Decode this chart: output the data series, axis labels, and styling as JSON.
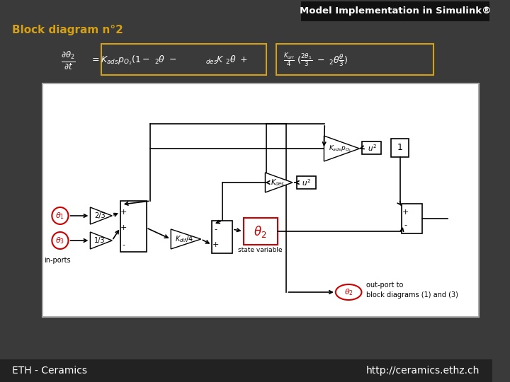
{
  "title": "Model Implementation in Simulink®",
  "subtitle": "Block diagram n°2",
  "bg_color": "#3a3a3a",
  "header_bg": "#1a1a1a",
  "title_color": "#ffffff",
  "subtitle_color": "#d4a017",
  "footer_text_left": "ETH - Ceramics",
  "footer_text_right": "http://ceramics.ethz.ch",
  "footer_color": "#ffffff",
  "footer_bg": "#222222"
}
